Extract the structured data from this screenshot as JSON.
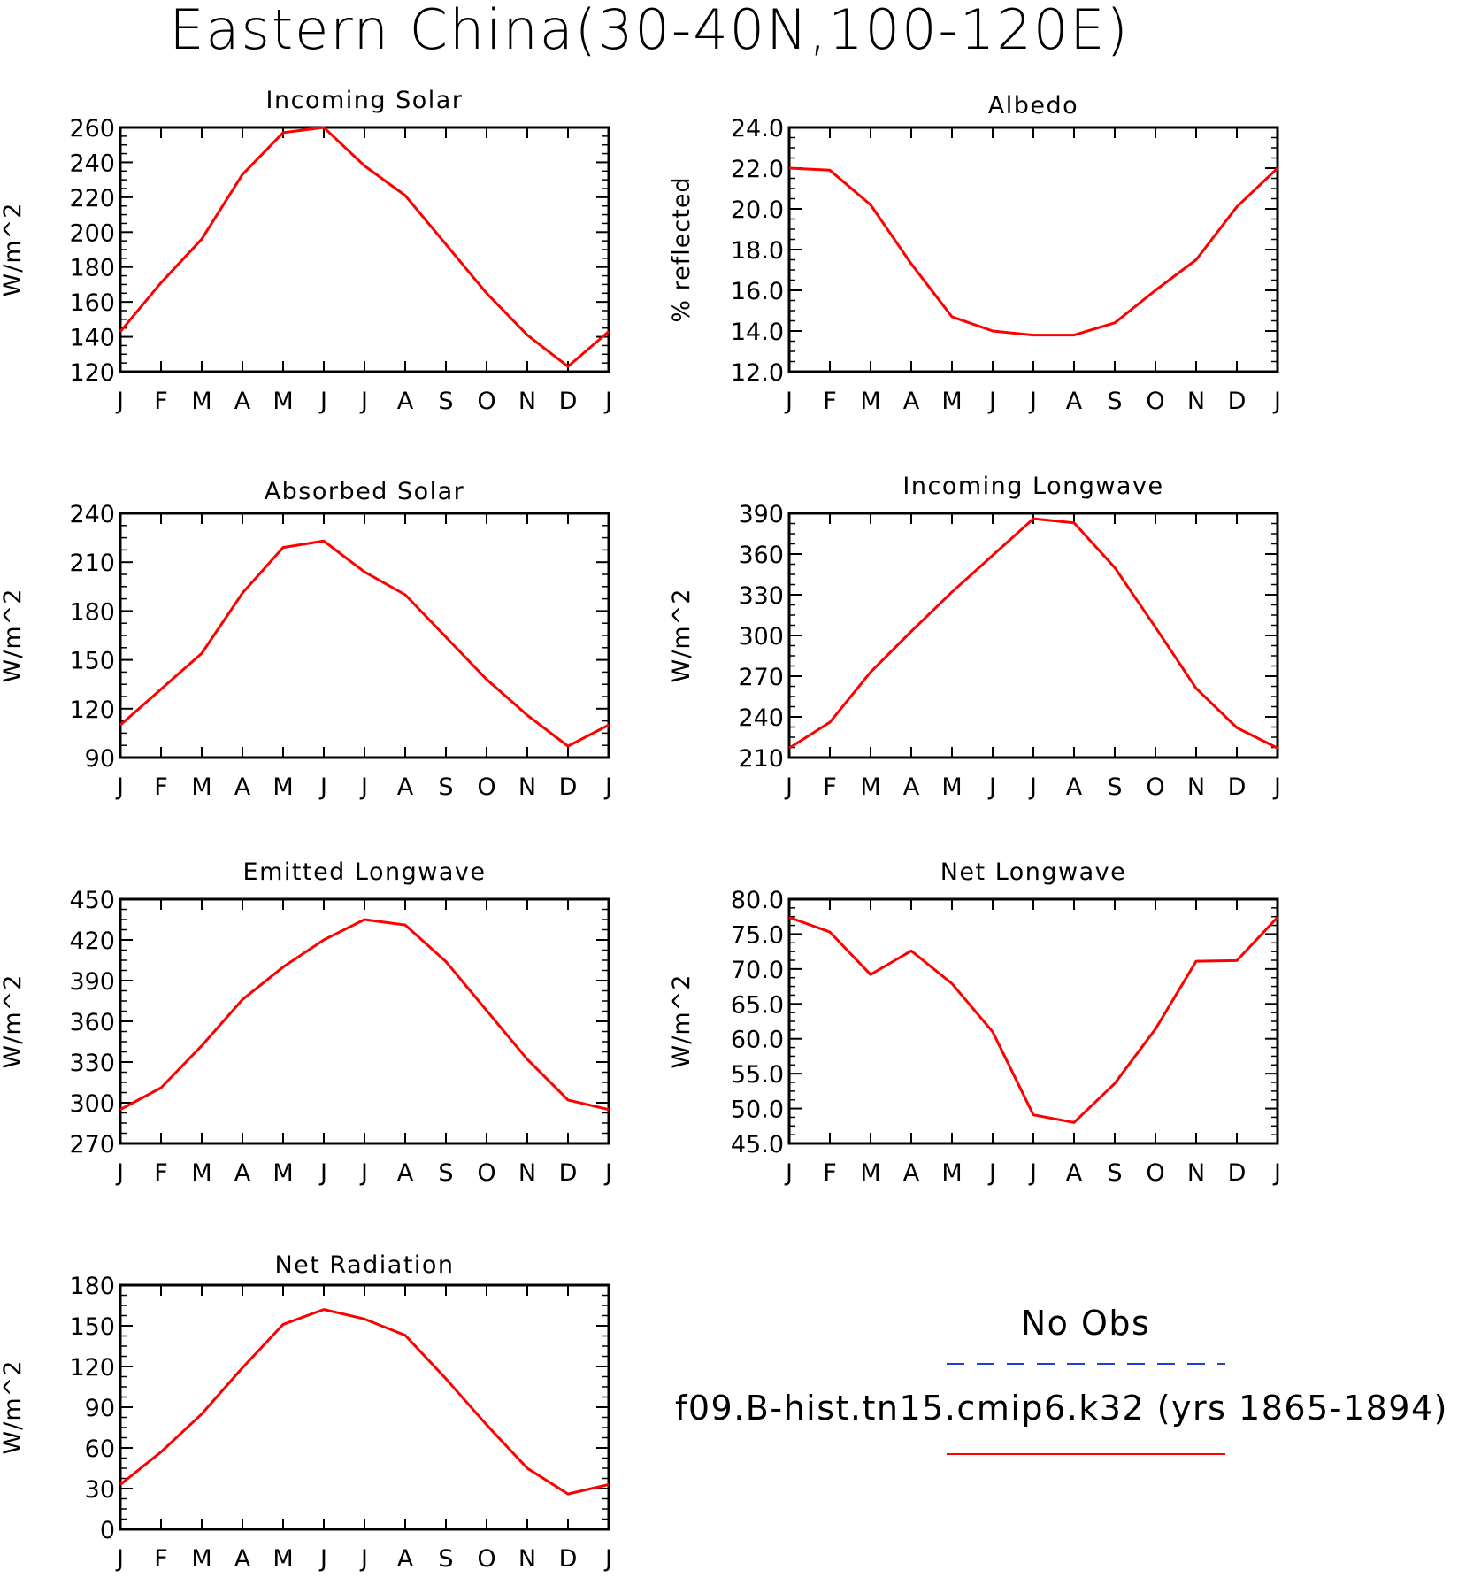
{
  "title": "Eastern China(30-40N,100-120E)",
  "months": [
    "J",
    "F",
    "M",
    "A",
    "M",
    "J",
    "J",
    "A",
    "S",
    "O",
    "N",
    "D",
    "J"
  ],
  "legend": {
    "obs_label": "No Obs",
    "obs_color": "#1f3fd6",
    "model_label": "f09.B-hist.tn15.cmip6.k32 (yrs 1865-1894)",
    "model_color": "#ff0000"
  },
  "chart_data": [
    {
      "type": "line",
      "title": "Incoming Solar",
      "ylabel": "W/m^2",
      "ylim": [
        120,
        260
      ],
      "yticks": [
        120,
        140,
        160,
        180,
        200,
        220,
        240,
        260
      ],
      "ytick_labels": [
        "120",
        "140",
        "160",
        "180",
        "200",
        "220",
        "240",
        "260"
      ],
      "x": [
        "J",
        "F",
        "M",
        "A",
        "M",
        "J",
        "J",
        "A",
        "S",
        "O",
        "N",
        "D",
        "J"
      ],
      "series": [
        {
          "values": [
            143,
            171,
            196,
            233,
            257,
            260,
            238,
            221,
            193,
            165,
            141,
            123,
            143
          ]
        }
      ]
    },
    {
      "type": "line",
      "title": "Albedo",
      "ylabel": "% reflected",
      "ylim": [
        12.0,
        24.0
      ],
      "yticks": [
        12,
        14,
        16,
        18,
        20,
        22,
        24
      ],
      "ytick_labels": [
        "12.0",
        "14.0",
        "16.0",
        "18.0",
        "20.0",
        "22.0",
        "24.0"
      ],
      "x": [
        "J",
        "F",
        "M",
        "A",
        "M",
        "J",
        "J",
        "A",
        "S",
        "O",
        "N",
        "D",
        "J"
      ],
      "series": [
        {
          "values": [
            22.0,
            21.9,
            20.2,
            17.3,
            14.7,
            14.0,
            13.8,
            13.8,
            14.4,
            16.0,
            17.5,
            20.1,
            22.0
          ]
        }
      ]
    },
    {
      "type": "line",
      "title": "Absorbed Solar",
      "ylabel": "W/m^2",
      "ylim": [
        90,
        240
      ],
      "yticks": [
        90,
        120,
        150,
        180,
        210,
        240
      ],
      "ytick_labels": [
        "90",
        "120",
        "150",
        "180",
        "210",
        "240"
      ],
      "x": [
        "J",
        "F",
        "M",
        "A",
        "M",
        "J",
        "J",
        "A",
        "S",
        "O",
        "N",
        "D",
        "J"
      ],
      "series": [
        {
          "values": [
            110,
            132,
            154,
            191,
            219,
            223,
            204,
            190,
            164,
            138,
            116,
            97,
            110
          ]
        }
      ]
    },
    {
      "type": "line",
      "title": "Incoming Longwave",
      "ylabel": "W/m^2",
      "ylim": [
        210,
        390
      ],
      "yticks": [
        210,
        240,
        270,
        300,
        330,
        360,
        390
      ],
      "ytick_labels": [
        "210",
        "240",
        "270",
        "300",
        "330",
        "360",
        "390"
      ],
      "x": [
        "J",
        "F",
        "M",
        "A",
        "M",
        "J",
        "J",
        "A",
        "S",
        "O",
        "N",
        "D",
        "J"
      ],
      "series": [
        {
          "values": [
            217,
            236,
            273,
            303,
            332,
            359,
            386,
            383,
            350,
            306,
            261,
            232,
            217
          ]
        }
      ]
    },
    {
      "type": "line",
      "title": "Emitted Longwave",
      "ylabel": "W/m^2",
      "ylim": [
        270,
        450
      ],
      "yticks": [
        270,
        300,
        330,
        360,
        390,
        420,
        450
      ],
      "ytick_labels": [
        "270",
        "300",
        "330",
        "360",
        "390",
        "420",
        "450"
      ],
      "x": [
        "J",
        "F",
        "M",
        "A",
        "M",
        "J",
        "J",
        "A",
        "S",
        "O",
        "N",
        "D",
        "J"
      ],
      "series": [
        {
          "values": [
            295,
            311,
            342,
            376,
            400,
            420,
            435,
            431,
            404,
            368,
            332,
            302,
            295
          ]
        }
      ]
    },
    {
      "type": "line",
      "title": "Net Longwave",
      "ylabel": "W/m^2",
      "ylim": [
        45.0,
        80.0
      ],
      "yticks": [
        45,
        50,
        55,
        60,
        65,
        70,
        75,
        80
      ],
      "ytick_labels": [
        "45.0",
        "50.0",
        "55.0",
        "60.0",
        "65.0",
        "70.0",
        "75.0",
        "80.0"
      ],
      "x": [
        "J",
        "F",
        "M",
        "A",
        "M",
        "J",
        "J",
        "A",
        "S",
        "O",
        "N",
        "D",
        "J"
      ],
      "series": [
        {
          "values": [
            77.4,
            75.3,
            69.2,
            72.6,
            67.9,
            61.0,
            49.1,
            48.0,
            53.6,
            61.4,
            71.1,
            71.2,
            77.4
          ]
        }
      ]
    },
    {
      "type": "line",
      "title": "Net Radiation",
      "ylabel": "W/m^2",
      "ylim": [
        0,
        180
      ],
      "yticks": [
        0,
        30,
        60,
        90,
        120,
        150,
        180
      ],
      "ytick_labels": [
        "0",
        "30",
        "60",
        "90",
        "120",
        "150",
        "180"
      ],
      "x": [
        "J",
        "F",
        "M",
        "A",
        "M",
        "J",
        "J",
        "A",
        "S",
        "O",
        "N",
        "D",
        "J"
      ],
      "series": [
        {
          "values": [
            33,
            57,
            85,
            119,
            151,
            162,
            155,
            143,
            111,
            77,
            45,
            26,
            33
          ]
        }
      ]
    }
  ]
}
